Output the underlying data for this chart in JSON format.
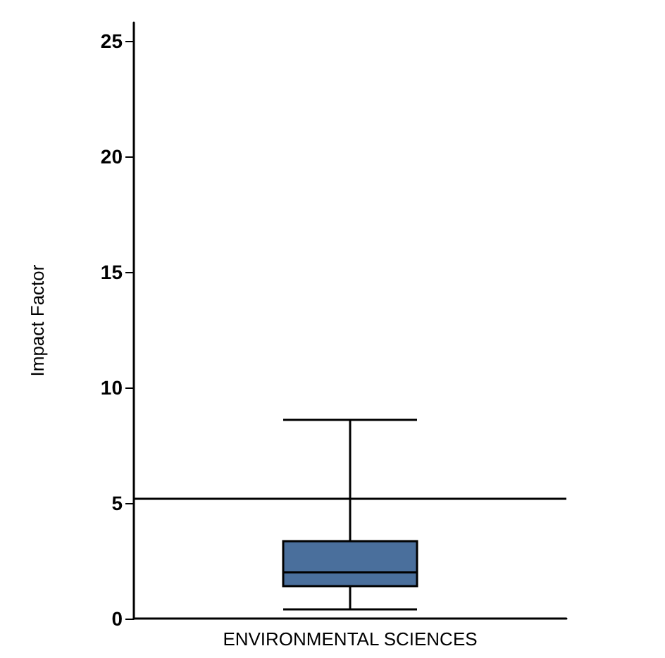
{
  "chart_data": {
    "type": "box",
    "ylabel": "Impact Factor",
    "categories": [
      "ENVIRONMENTAL SCIENCES"
    ],
    "boxes": [
      {
        "low": 0.4,
        "q1": 1.4,
        "median": 2.0,
        "q3": 3.35,
        "high": 8.6
      }
    ],
    "color": "#4a6f9c",
    "ylim": [
      0,
      25.8
    ],
    "yticks": [
      0,
      5,
      10,
      15,
      20,
      25
    ],
    "grid": false,
    "ref_lines": [
      {
        "axis": "y",
        "value": 5.2,
        "color": "#000000"
      }
    ]
  }
}
